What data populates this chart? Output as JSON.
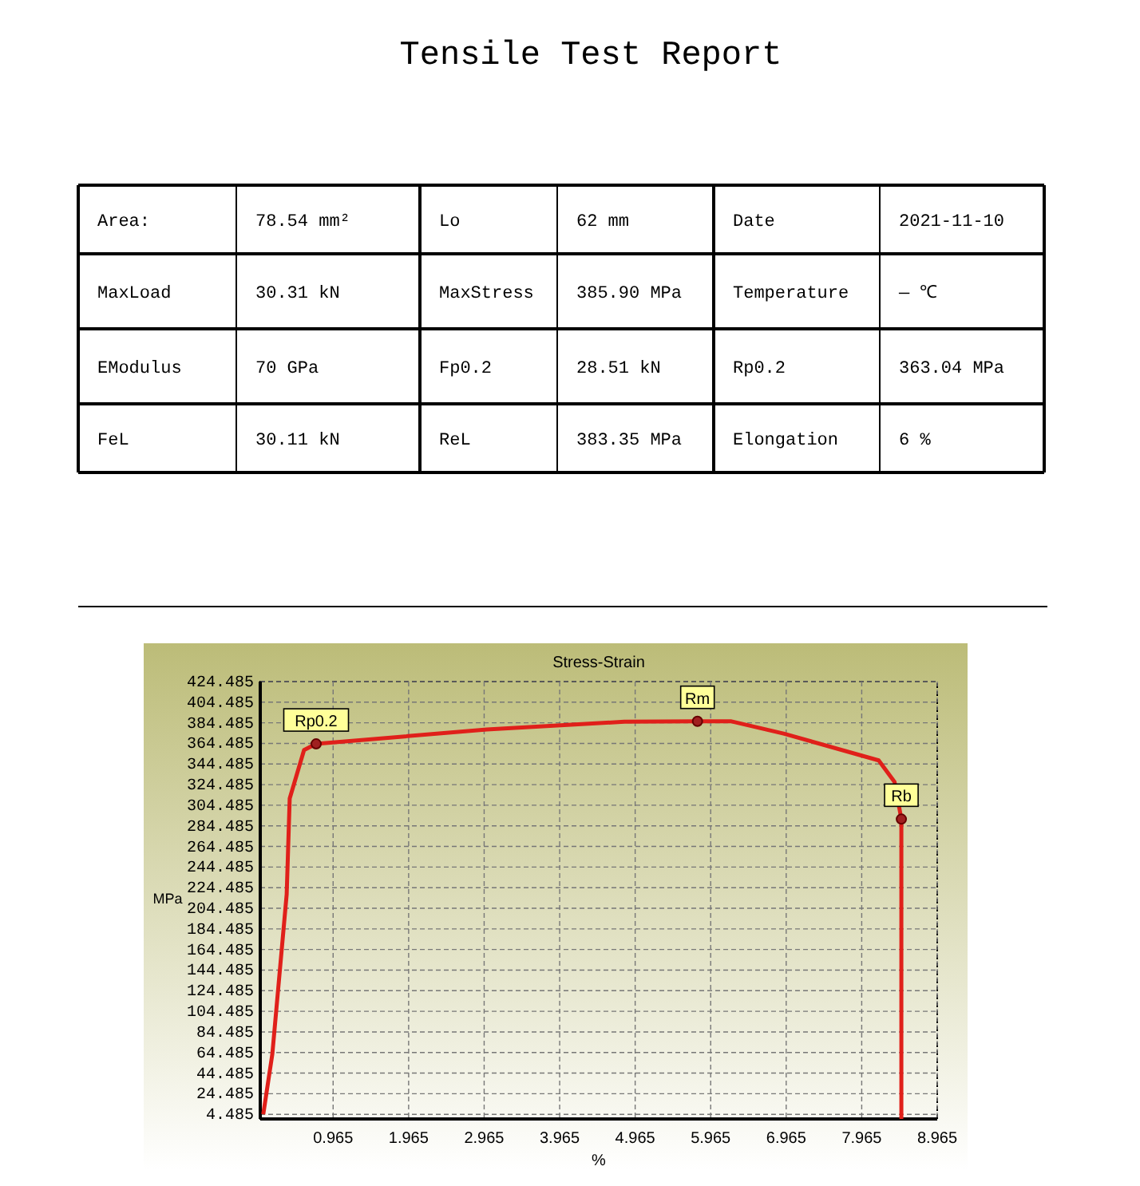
{
  "chart_data": [
    {
      "type": "other",
      "title": "Tensile Test Report",
      "annotations": [
        "Area:",
        "78.54 mm²",
        "Lo",
        "62 mm",
        "Date",
        "2021-11-10",
        "MaxLoad",
        "30.31 kN",
        "MaxStress",
        "385.90 MPa",
        "Temperature",
        "— ℃",
        "EModulus",
        "70 GPa",
        "Fp0.2",
        "28.51 kN",
        "Rp0.2",
        "363.04 MPa",
        "FeL",
        "30.11 kN",
        "ReL",
        "383.35 MPa",
        "Elongation",
        "6 %"
      ]
    },
    {
      "type": "line",
      "title": "Stress-Strain",
      "xlabel": "%",
      "ylabel": "MPa",
      "xlim": [
        0,
        8.965
      ],
      "ylim": [
        0,
        424.485
      ],
      "xticks": [
        0.965,
        1.965,
        2.965,
        3.965,
        4.965,
        5.965,
        6.965,
        7.965,
        8.965
      ],
      "yticks": [
        4.485,
        24.485,
        44.485,
        64.485,
        84.485,
        104.485,
        124.485,
        144.485,
        164.485,
        184.485,
        204.485,
        224.485,
        244.485,
        264.485,
        284.485,
        304.485,
        324.485,
        344.485,
        364.485,
        384.485,
        404.485,
        424.485
      ],
      "grid": true,
      "series": [
        {
          "color": "#e0201a",
          "x": [
            0.04,
            0.16,
            0.35,
            0.39,
            0.58,
            0.74,
            3.0,
            4.82,
            5.79,
            6.23,
            6.93,
            8.19,
            8.4,
            8.49,
            8.49
          ],
          "values": [
            4.5,
            63,
            218,
            311,
            358,
            364,
            378,
            385.5,
            386,
            386,
            374,
            348,
            327,
            291,
            0
          ]
        }
      ],
      "annotations": [
        {
          "text": "Rp0.2",
          "x": 0.74,
          "y": 364
        },
        {
          "text": "Rm",
          "x": 5.79,
          "y": 386
        },
        {
          "text": "Rb",
          "x": 8.49,
          "y": 291
        }
      ]
    }
  ]
}
